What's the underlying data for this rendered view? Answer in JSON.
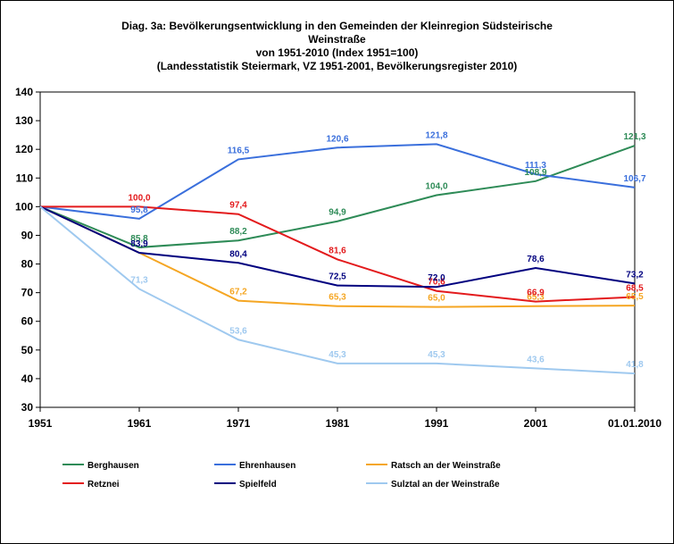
{
  "chart_data": {
    "type": "line",
    "title": [
      "Diag. 3a: Bevölkerungsentwicklung  in den Gemeinden  der Kleinregion  Südsteirische",
      "Weinstraße",
      "von 1951-2010  (Index 1951=100)",
      "(Landesstatistik  Steiermark,  VZ 1951-2001,  Bevölkerungsregister  2010)"
    ],
    "categories": [
      "1951",
      "1961",
      "1971",
      "1981",
      "1991",
      "2001",
      "01.01.2010"
    ],
    "ylim": [
      30,
      140
    ],
    "yticks": [
      "30",
      "40",
      "50",
      "60",
      "70",
      "80",
      "90",
      "100",
      "110",
      "120",
      "130",
      "140"
    ],
    "grid": false,
    "legend": "bottom",
    "series": [
      {
        "name": "Berghausen",
        "color": "#2e8b57",
        "values": [
          100,
          85.8,
          88.2,
          94.9,
          104.0,
          108.9,
          121.3
        ],
        "labels": [
          "",
          "85,8",
          "88,2",
          "94,9",
          "104,0",
          "108,9",
          "121,3"
        ]
      },
      {
        "name": "Ehrenhausen",
        "color": "#3a6fdc",
        "values": [
          100,
          95.8,
          116.5,
          120.6,
          121.8,
          111.3,
          106.7
        ],
        "labels": [
          "",
          "95,8",
          "116,5",
          "120,6",
          "121,8",
          "111,3",
          "106,7"
        ]
      },
      {
        "name": "Ratsch an der Weinstraße",
        "color": "#f5a623",
        "values": [
          100,
          83.9,
          67.2,
          65.3,
          65.0,
          65.3,
          65.5
        ],
        "labels": [
          "",
          "",
          "67,2",
          "65,3",
          "65,0",
          "65,3",
          "65,5"
        ]
      },
      {
        "name": "Retznei",
        "color": "#e31a1c",
        "values": [
          100,
          100.0,
          97.4,
          81.6,
          70.6,
          66.9,
          68.5
        ],
        "labels": [
          "",
          "100,0",
          "97,4",
          "81,6",
          "70,6",
          "66,9",
          "68,5"
        ]
      },
      {
        "name": "Spielfeld",
        "color": "#00007f",
        "values": [
          100,
          83.9,
          80.4,
          72.5,
          72.0,
          78.6,
          73.2
        ],
        "labels": [
          "",
          "83,9",
          "80,4",
          "72,5",
          "72,0",
          "78,6",
          "73,2"
        ]
      },
      {
        "name": "Sulztal an der Weinstraße",
        "color": "#9fc9ef",
        "values": [
          100,
          71.3,
          53.6,
          45.3,
          45.3,
          43.6,
          41.8
        ],
        "labels": [
          "",
          "71,3",
          "53,6",
          "45,3",
          "45,3",
          "43,6",
          "41,8"
        ]
      }
    ]
  }
}
